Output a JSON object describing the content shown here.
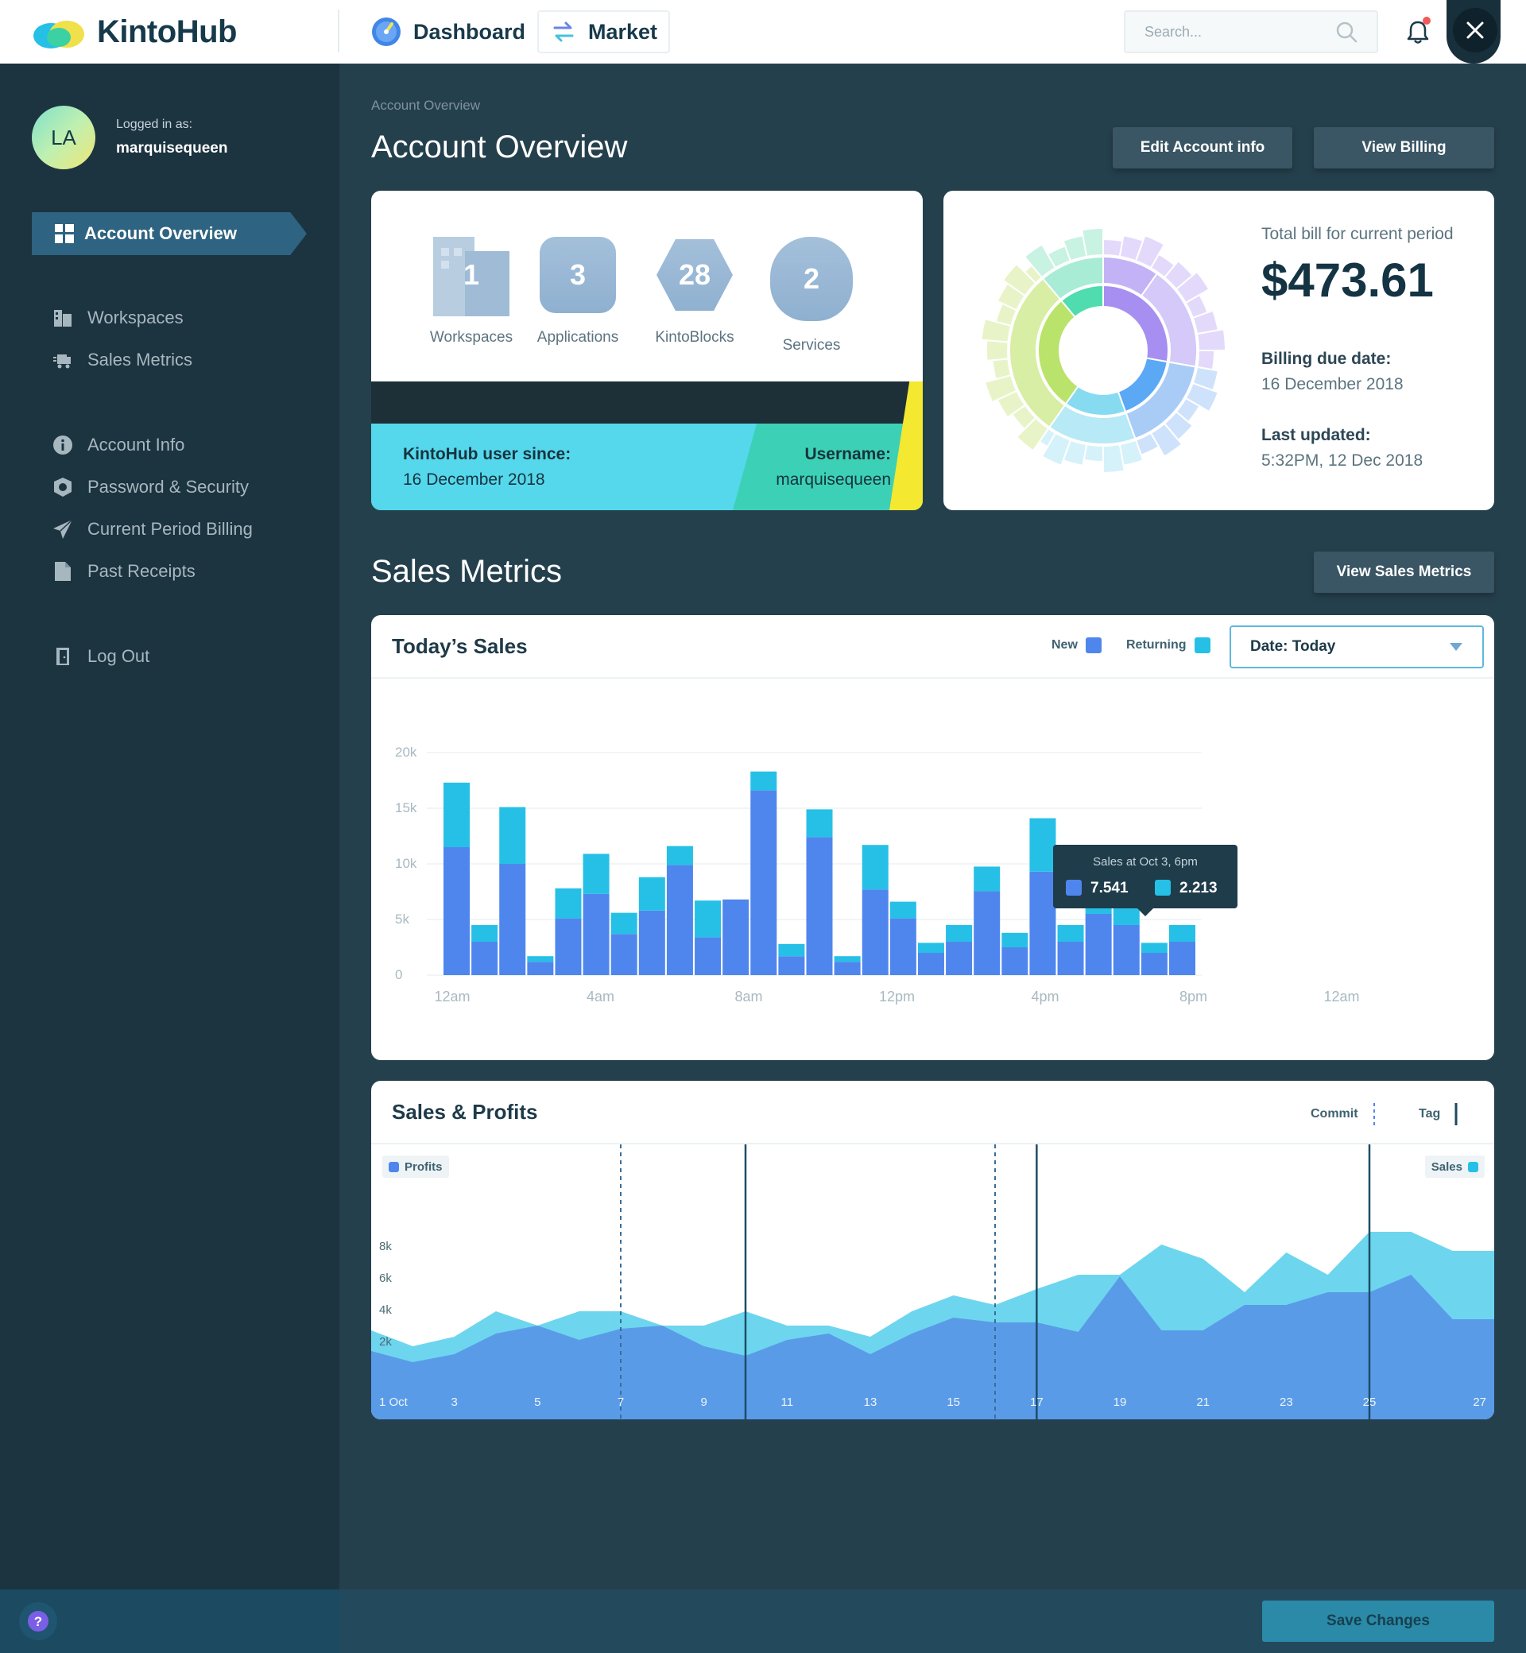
{
  "app": {
    "name": "KintoHub"
  },
  "topnav": {
    "tabs": [
      {
        "label": "Dashboard"
      },
      {
        "label": "Market"
      }
    ],
    "search": {
      "placeholder": "Search..."
    }
  },
  "sidebar": {
    "avatar_initials": "LA",
    "logged_in_label": "Logged in as:",
    "username": "marquisequeen",
    "items": [
      {
        "label": "Account Overview",
        "icon": "grid-icon",
        "active": true
      },
      {
        "label": "Workspaces",
        "icon": "building-icon"
      },
      {
        "label": "Sales Metrics",
        "icon": "truck-icon"
      },
      {
        "label": "Account Info",
        "icon": "info-icon"
      },
      {
        "label": "Password & Security",
        "icon": "shield-icon"
      },
      {
        "label": "Current Period Billing",
        "icon": "paper-plane-icon"
      },
      {
        "label": "Past Receipts",
        "icon": "receipt-icon"
      },
      {
        "label": "Log Out",
        "icon": "door-icon"
      }
    ]
  },
  "page": {
    "breadcrumb": "Account Overview",
    "title": "Account Overview",
    "edit_button": "Edit Account info",
    "billing_button": "View Billing"
  },
  "overview": {
    "stats": [
      {
        "value": "1",
        "label": "Workspaces",
        "icon": "building-icon"
      },
      {
        "value": "3",
        "label": "Applications",
        "icon": "rounded-square-icon"
      },
      {
        "value": "28",
        "label": "KintoBlocks",
        "icon": "hexagon-icon"
      },
      {
        "value": "2",
        "label": "Services",
        "icon": "blob-icon"
      }
    ],
    "since_label": "KintoHub user since:",
    "since_value": "16 December 2018",
    "username_label": "Username:",
    "username_value": "marquisequeen"
  },
  "billing": {
    "total_label": "Total bill for current period",
    "total_value": "$473.61",
    "due_label": "Billing due date:",
    "due_value": "16 December 2018",
    "updated_label": "Last updated:",
    "updated_value": "5:32PM, 12 Dec 2018"
  },
  "sales_section": {
    "title": "Sales Metrics",
    "button": "View Sales Metrics"
  },
  "todays_sales": {
    "title": "Today’s Sales",
    "legend_new": "New",
    "legend_returning": "Returning",
    "date_select": "Date: Today",
    "tooltip": {
      "title": "Sales at Oct 3, 6pm",
      "new": "7.541",
      "returning": "2.213"
    }
  },
  "sales_profits": {
    "title": "Sales & Profits",
    "legend_commit": "Commit",
    "legend_tag": "Tag",
    "profits_label": "Profits",
    "sales_label": "Sales"
  },
  "footer": {
    "save_button": "Save Changes"
  },
  "colors": {
    "new": "#4f86ee",
    "returning": "#26c0e6",
    "profits": "#5a9be8",
    "sales": "#6dd6ee",
    "sidebar": "#1c3340",
    "main": "#25404d"
  },
  "chart_data": [
    {
      "type": "bar",
      "title": "Today’s Sales",
      "stacked": true,
      "x_tick_labels": [
        "12am",
        "4am",
        "8am",
        "12pm",
        "4pm",
        "8pm",
        "12am"
      ],
      "y_tick_labels": [
        "0",
        "5k",
        "10k",
        "15k",
        "20k"
      ],
      "ylim": [
        0,
        20000
      ],
      "grid": true,
      "series": [
        {
          "name": "New",
          "values": [
            11500,
            3000,
            10000,
            1200,
            5100,
            7300,
            3700,
            5800,
            9900,
            3400,
            6800,
            16600,
            1700,
            12400,
            1200,
            7700,
            5100,
            2000,
            3000,
            7541,
            2500,
            9300,
            3000,
            5500,
            4500,
            2000,
            3000
          ]
        },
        {
          "name": "Returning",
          "values": [
            5800,
            1500,
            5100,
            500,
            2700,
            3600,
            1900,
            3000,
            1700,
            3300,
            0,
            1700,
            1100,
            2500,
            500,
            4000,
            1500,
            900,
            1500,
            2213,
            1300,
            4800,
            1500,
            1200,
            2200,
            900,
            1500
          ]
        }
      ],
      "tooltip": {
        "title": "Sales at Oct 3, 6pm",
        "new": 7.541,
        "returning": 2.213
      }
    },
    {
      "type": "area",
      "title": "Sales & Profits",
      "x_tick_labels": [
        "1 Oct",
        "3",
        "5",
        "7",
        "9",
        "11",
        "13",
        "15",
        "17",
        "19",
        "21",
        "23",
        "25",
        "27"
      ],
      "y_tick_labels": [
        "2k",
        "4k",
        "6k",
        "8k"
      ],
      "x": [
        1,
        2,
        3,
        4,
        5,
        6,
        7,
        8,
        9,
        10,
        11,
        12,
        13,
        14,
        15,
        16,
        17,
        18,
        19,
        20,
        21,
        22,
        23,
        24,
        25,
        26,
        27,
        28
      ],
      "ylim": [
        0,
        9000
      ],
      "series": [
        {
          "name": "Sales",
          "values": [
            2700,
            1700,
            2300,
            3900,
            3000,
            3900,
            3900,
            3000,
            3000,
            3900,
            3000,
            3000,
            2300,
            3900,
            4900,
            4300,
            5300,
            6200,
            6200,
            8100,
            7200,
            5100,
            7600,
            6200,
            8900,
            8900,
            7700,
            7700
          ]
        },
        {
          "name": "Profits",
          "values": [
            1400,
            700,
            1200,
            2500,
            3000,
            2100,
            2800,
            3000,
            1700,
            1100,
            2100,
            2500,
            1200,
            2500,
            3500,
            3200,
            3200,
            2600,
            6100,
            2700,
            2700,
            4300,
            4300,
            5100,
            5100,
            6200,
            3400,
            3400
          ]
        }
      ],
      "markers": [
        {
          "type": "commit",
          "x": 7
        },
        {
          "type": "tag",
          "x": 10
        },
        {
          "type": "commit",
          "x": 16
        },
        {
          "type": "tag",
          "x": 17
        },
        {
          "type": "tag",
          "x": 25
        }
      ]
    }
  ]
}
